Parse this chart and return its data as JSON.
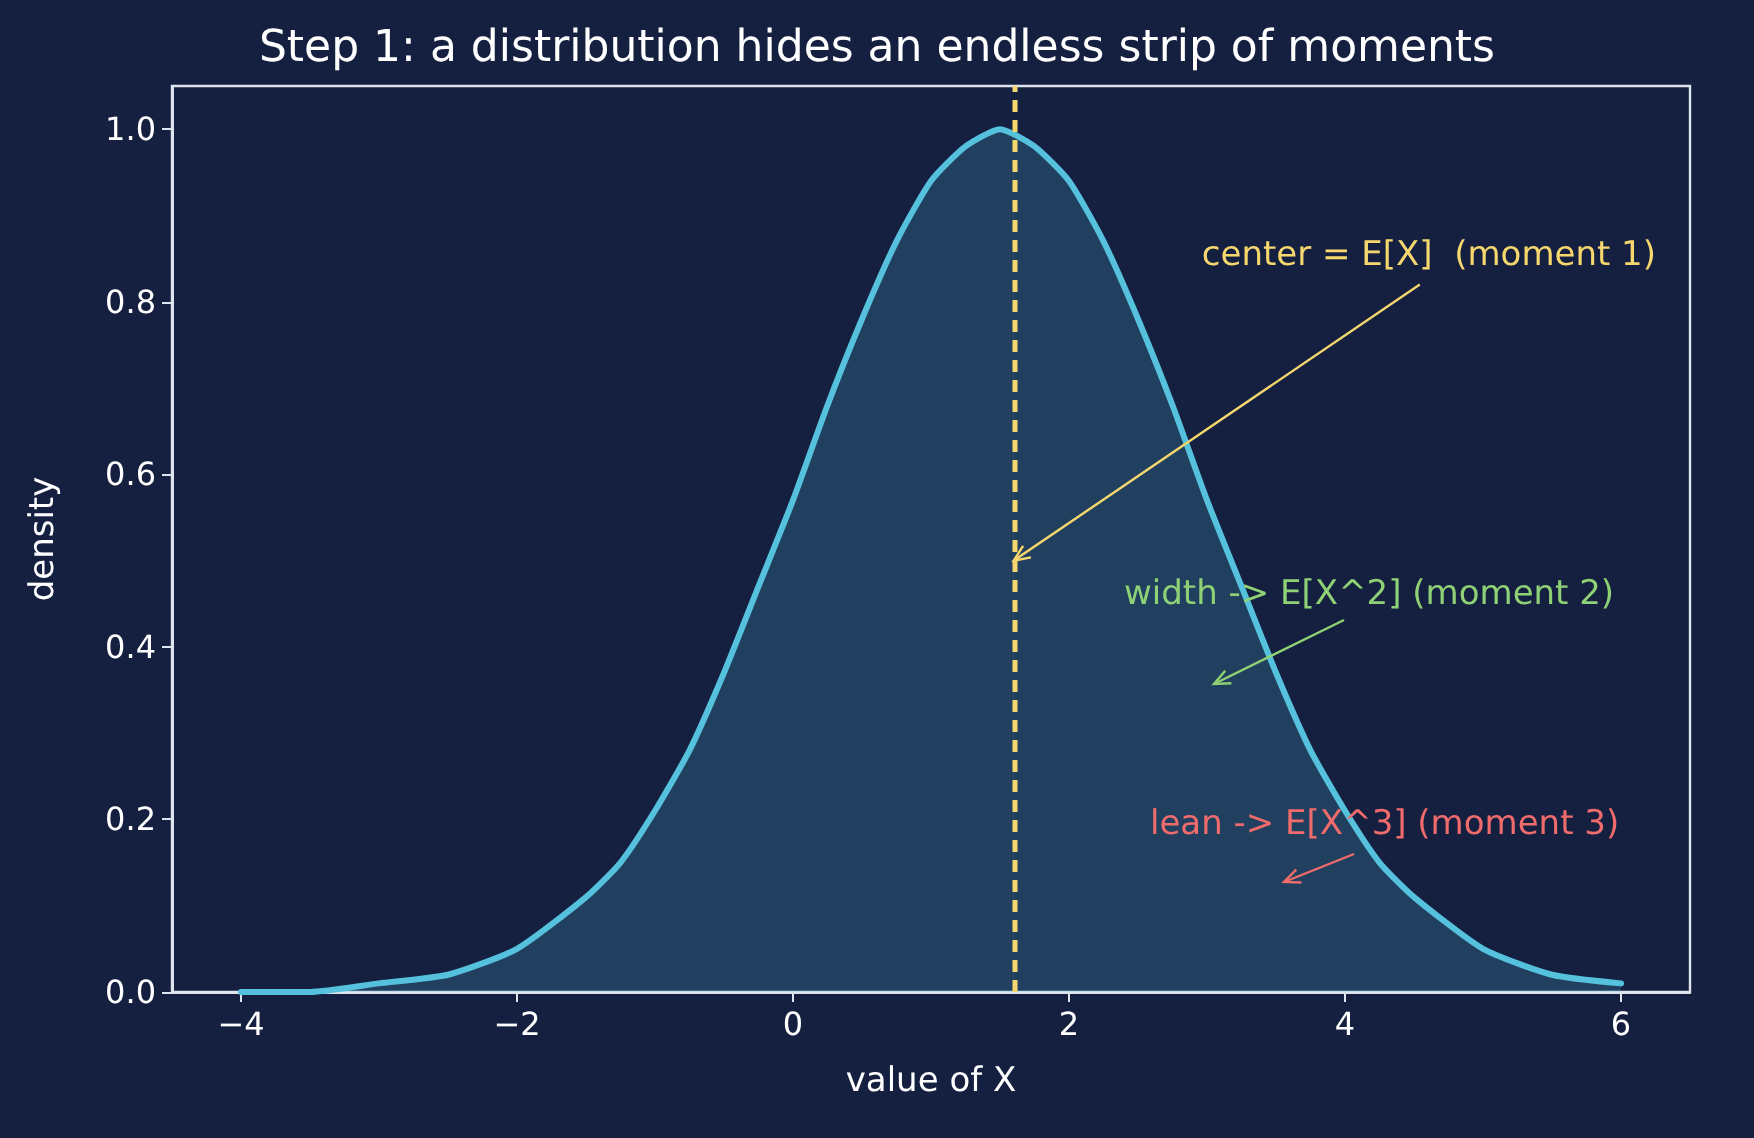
{
  "chart_data": {
    "type": "area",
    "title": "Step 1: a distribution hides an endless strip of moments",
    "xlabel": "value of X",
    "ylabel": "density",
    "x": [
      -4,
      -3.5,
      -3,
      -2.5,
      -2,
      -1.5,
      -1.25,
      -1,
      -0.75,
      -0.5,
      -0.25,
      0,
      0.25,
      0.5,
      0.75,
      1,
      1.25,
      1.5,
      1.75,
      2,
      2.25,
      2.5,
      2.75,
      3,
      3.25,
      3.5,
      3.75,
      4,
      4.25,
      4.5,
      5,
      5.5,
      6
    ],
    "series": [
      {
        "color": "#56c1dc",
        "values": [
          0.0,
          0.0,
          0.01,
          0.02,
          0.05,
          0.11,
          0.15,
          0.21,
          0.28,
          0.37,
          0.47,
          0.57,
          0.68,
          0.78,
          0.87,
          0.94,
          0.98,
          1.0,
          0.98,
          0.94,
          0.87,
          0.78,
          0.68,
          0.57,
          0.47,
          0.37,
          0.28,
          0.21,
          0.15,
          0.11,
          0.05,
          0.02,
          0.01
        ]
      }
    ],
    "xlim": [
      -4.5,
      6.5
    ],
    "xticks": [
      {
        "value": -4,
        "label": "−4"
      },
      {
        "value": -2,
        "label": "−2"
      },
      0,
      2,
      4,
      6
    ],
    "ylim": [
      0,
      1.05
    ],
    "yticks": [
      {
        "value": 0,
        "label": "0.0"
      },
      {
        "value": 0.2,
        "label": "0.2"
      },
      {
        "value": 0.4,
        "label": "0.4"
      },
      {
        "value": 0.6,
        "label": "0.6"
      },
      {
        "value": 0.8,
        "label": "0.8"
      },
      {
        "value": 1,
        "label": "1.0"
      }
    ],
    "grid": false,
    "marker": "none",
    "line_style": "solid",
    "ref_lines": [
      {
        "axis": "x",
        "value": 1.6,
        "color": "#f5d76e",
        "line_style": "dashed"
      }
    ],
    "annotations": [
      {
        "text": "center = E[X]  (moment 1)",
        "x": 1.6,
        "y": 0.5
      },
      "width -> E[X^2] (moment 2)",
      "lean -> E[X^3] (moment 3)"
    ]
  }
}
